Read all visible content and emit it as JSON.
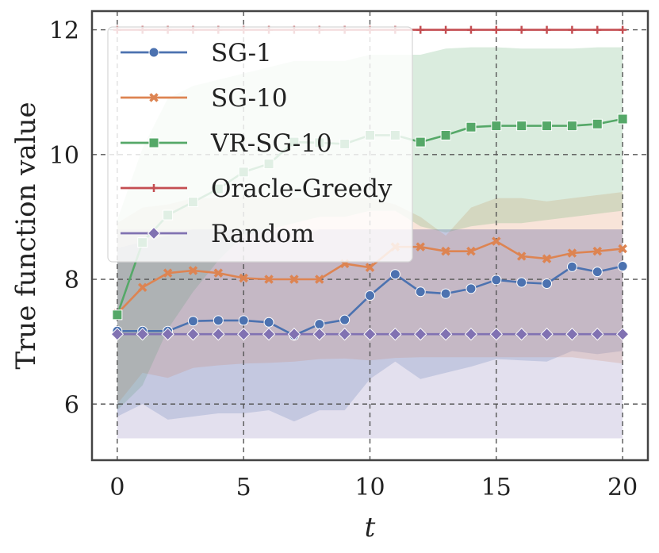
{
  "chart_data": {
    "type": "line",
    "title": "",
    "xlabel": "t",
    "ylabel": "True function value",
    "xlim": [
      -1,
      21
    ],
    "ylim": [
      5.1,
      12.3
    ],
    "xticks": [
      0,
      5,
      10,
      15,
      20
    ],
    "yticks": [
      6,
      8,
      10,
      12
    ],
    "xtick_labels": [
      "0",
      "5",
      "10",
      "15",
      "20"
    ],
    "ytick_labels": [
      "6",
      "8",
      "10",
      "12"
    ],
    "grid": true,
    "legend_position": "top-left",
    "x": [
      0,
      1,
      2,
      3,
      4,
      5,
      6,
      7,
      8,
      9,
      10,
      11,
      12,
      13,
      14,
      15,
      16,
      17,
      18,
      19,
      20
    ],
    "series": [
      {
        "name": "SG-1",
        "color": "#4c72b0",
        "marker": "circle",
        "values": [
          7.17,
          7.17,
          7.17,
          7.33,
          7.34,
          7.34,
          7.31,
          7.1,
          7.28,
          7.35,
          7.74,
          8.08,
          7.8,
          7.77,
          7.85,
          7.99,
          7.95,
          7.93,
          8.2,
          8.12,
          8.21
        ],
        "lower": [
          5.8,
          6.0,
          5.75,
          5.8,
          5.85,
          5.85,
          5.9,
          5.72,
          5.9,
          5.9,
          6.4,
          6.68,
          6.4,
          6.5,
          6.6,
          6.72,
          6.7,
          6.68,
          6.85,
          6.8,
          6.85
        ],
        "upper": [
          8.5,
          8.6,
          8.7,
          8.8,
          8.8,
          8.8,
          8.8,
          8.6,
          8.8,
          8.8,
          8.8,
          8.8,
          8.8,
          8.8,
          8.8,
          8.8,
          8.8,
          8.8,
          8.8,
          8.8,
          8.8
        ]
      },
      {
        "name": "SG-10",
        "color": "#dd8452",
        "marker": "x",
        "values": [
          7.45,
          7.87,
          8.1,
          8.14,
          8.1,
          8.02,
          8.0,
          8.0,
          8.0,
          8.25,
          8.19,
          8.52,
          8.52,
          8.45,
          8.45,
          8.61,
          8.37,
          8.33,
          8.42,
          8.45,
          8.49
        ],
        "lower": [
          6.0,
          6.5,
          6.42,
          6.58,
          6.62,
          6.65,
          6.66,
          6.68,
          6.72,
          6.73,
          6.7,
          6.74,
          6.75,
          6.75,
          6.75,
          6.75,
          6.75,
          6.75,
          6.75,
          6.7,
          6.65
        ],
        "upper": [
          8.9,
          9.15,
          9.2,
          9.3,
          9.3,
          9.32,
          9.32,
          9.3,
          9.3,
          9.3,
          9.3,
          9.2,
          9.0,
          8.7,
          9.15,
          9.3,
          9.3,
          9.25,
          9.3,
          9.35,
          9.4
        ]
      },
      {
        "name": "VR-SG-10",
        "color": "#55a868",
        "marker": "square",
        "values": [
          7.43,
          8.59,
          9.03,
          9.24,
          9.45,
          9.72,
          9.85,
          10.2,
          10.19,
          10.17,
          10.31,
          10.31,
          10.2,
          10.31,
          10.44,
          10.46,
          10.46,
          10.46,
          10.46,
          10.49,
          10.57
        ],
        "lower": [
          5.9,
          6.3,
          7.2,
          7.8,
          8.3,
          8.7,
          8.8,
          8.9,
          9.0,
          9.0,
          9.1,
          9.1,
          8.85,
          8.75,
          8.85,
          8.9,
          8.9,
          8.95,
          9.0,
          9.05,
          9.1
        ],
        "upper": [
          8.95,
          10.1,
          10.9,
          11.1,
          11.2,
          11.3,
          11.4,
          11.5,
          11.5,
          11.5,
          11.6,
          11.6,
          11.6,
          11.7,
          11.72,
          11.72,
          11.7,
          11.7,
          11.7,
          11.72,
          11.72
        ]
      },
      {
        "name": "Oracle-Greedy",
        "color": "#c44e52",
        "marker": "plus",
        "values": [
          12,
          12,
          12,
          12,
          12,
          12,
          12,
          12,
          12,
          12,
          12,
          12,
          12,
          12,
          12,
          12,
          12,
          12,
          12,
          12,
          12
        ]
      },
      {
        "name": "Random",
        "color": "#8172b2",
        "marker": "diamond",
        "values": [
          7.12,
          7.12,
          7.12,
          7.12,
          7.12,
          7.12,
          7.12,
          7.12,
          7.12,
          7.12,
          7.12,
          7.12,
          7.12,
          7.12,
          7.12,
          7.12,
          7.12,
          7.12,
          7.12,
          7.12,
          7.12
        ],
        "lower": [
          5.45,
          5.45,
          5.45,
          5.45,
          5.45,
          5.45,
          5.45,
          5.45,
          5.45,
          5.45,
          5.45,
          5.45,
          5.45,
          5.45,
          5.45,
          5.45,
          5.45,
          5.45,
          5.45,
          5.45,
          5.45
        ],
        "upper": [
          8.8,
          8.8,
          8.8,
          8.8,
          8.8,
          8.8,
          8.8,
          8.8,
          8.8,
          8.8,
          8.8,
          8.8,
          8.8,
          8.8,
          8.8,
          8.8,
          8.8,
          8.8,
          8.8,
          8.8,
          8.8
        ]
      }
    ]
  }
}
